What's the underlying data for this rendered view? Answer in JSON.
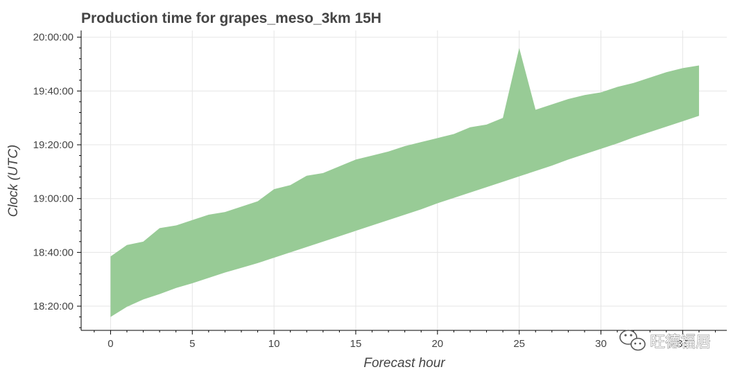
{
  "chart_data": {
    "type": "area",
    "title": "Production time for grapes_meso_3km 15H",
    "xlabel": "Forecast hour",
    "ylabel": "Clock (UTC)",
    "xlim": [
      -1.8,
      37.7
    ],
    "ylim": [
      "18:11:00",
      "20:02:30"
    ],
    "x_ticks": [
      0,
      5,
      10,
      15,
      20,
      25,
      30,
      35
    ],
    "x_tick_labels": [
      "0",
      "5",
      "10",
      "15",
      "20",
      "25",
      "30",
      "35"
    ],
    "y_ticks": [
      "18:20:00",
      "18:40:00",
      "19:00:00",
      "19:20:00",
      "19:40:00",
      "20:00:00"
    ],
    "grid": true,
    "fill_color": "#98cb96",
    "x": [
      0,
      1,
      2,
      3,
      4,
      5,
      6,
      7,
      8,
      9,
      10,
      11,
      12,
      13,
      14,
      15,
      16,
      17,
      18,
      19,
      20,
      21,
      22,
      23,
      24,
      25,
      26,
      27,
      28,
      29,
      30,
      31,
      32,
      33,
      34,
      35,
      36
    ],
    "lower": [
      "18:16:00",
      "18:19:45",
      "18:22:30",
      "18:24:30",
      "18:26:45",
      "18:28:30",
      "18:30:30",
      "18:32:30",
      "18:34:15",
      "18:36:00",
      "18:38:00",
      "18:40:00",
      "18:42:00",
      "18:44:00",
      "18:46:00",
      "18:48:00",
      "18:50:00",
      "18:52:00",
      "18:54:00",
      "18:56:00",
      "18:58:15",
      "19:00:15",
      "19:02:15",
      "19:04:15",
      "19:06:15",
      "19:08:15",
      "19:10:15",
      "19:12:15",
      "19:14:30",
      "19:16:30",
      "19:18:30",
      "19:20:30",
      "19:22:45",
      "19:24:45",
      "19:26:45",
      "19:28:45",
      "19:30:45"
    ],
    "upper": [
      "18:38:30",
      "18:42:45",
      "18:44:00",
      "18:49:00",
      "18:50:00",
      "18:52:00",
      "18:54:00",
      "18:55:00",
      "18:57:00",
      "18:59:00",
      "19:03:30",
      "19:05:00",
      "19:08:30",
      "19:09:30",
      "19:12:00",
      "19:14:30",
      "19:16:00",
      "19:17:30",
      "19:19:30",
      "19:21:00",
      "19:22:30",
      "19:24:00",
      "19:26:30",
      "19:27:30",
      "19:30:00",
      "19:56:00",
      "19:33:00",
      "19:35:00",
      "19:37:00",
      "19:38:30",
      "19:39:30",
      "19:41:30",
      "19:43:00",
      "19:45:00",
      "19:47:00",
      "19:48:30",
      "19:49:30"
    ]
  },
  "watermark": {
    "text": "旺德福居",
    "icon": "wechat-icon"
  }
}
